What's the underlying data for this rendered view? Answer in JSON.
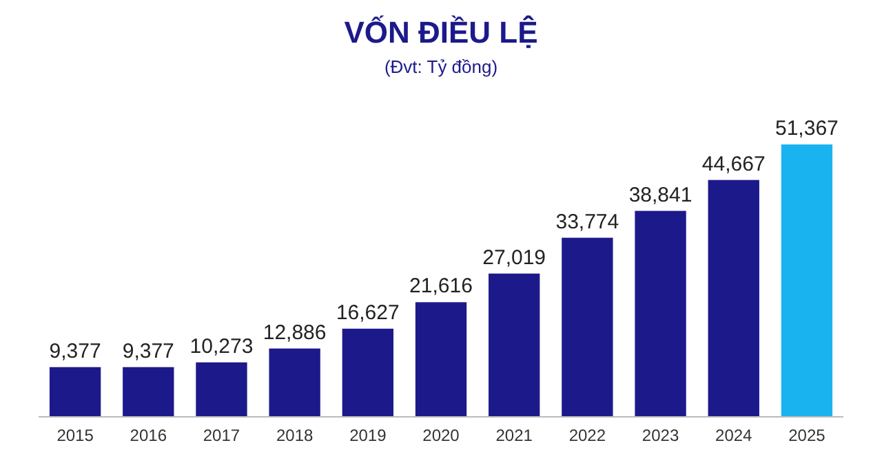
{
  "chart_data": {
    "type": "bar",
    "title": "VỐN ĐIỀU LỆ",
    "subtitle": "(Đvt: Tỷ đồng)",
    "categories": [
      "2015",
      "2016",
      "2017",
      "2018",
      "2019",
      "2020",
      "2021",
      "2022",
      "2023",
      "2024",
      "2025"
    ],
    "values": [
      9377,
      9377,
      10273,
      12886,
      16627,
      21616,
      27019,
      33774,
      38841,
      44667,
      51367
    ],
    "colors": [
      "#1c1a8a",
      "#1c1a8a",
      "#1c1a8a",
      "#1c1a8a",
      "#1c1a8a",
      "#1c1a8a",
      "#1c1a8a",
      "#1c1a8a",
      "#1c1a8a",
      "#1c1a8a",
      "#19b4f0"
    ],
    "value_labels": [
      "9,377",
      "9,377",
      "10,273",
      "12,886",
      "16,627",
      "21,616",
      "27,019",
      "33,774",
      "38,841",
      "44,667",
      "51,367"
    ]
  }
}
